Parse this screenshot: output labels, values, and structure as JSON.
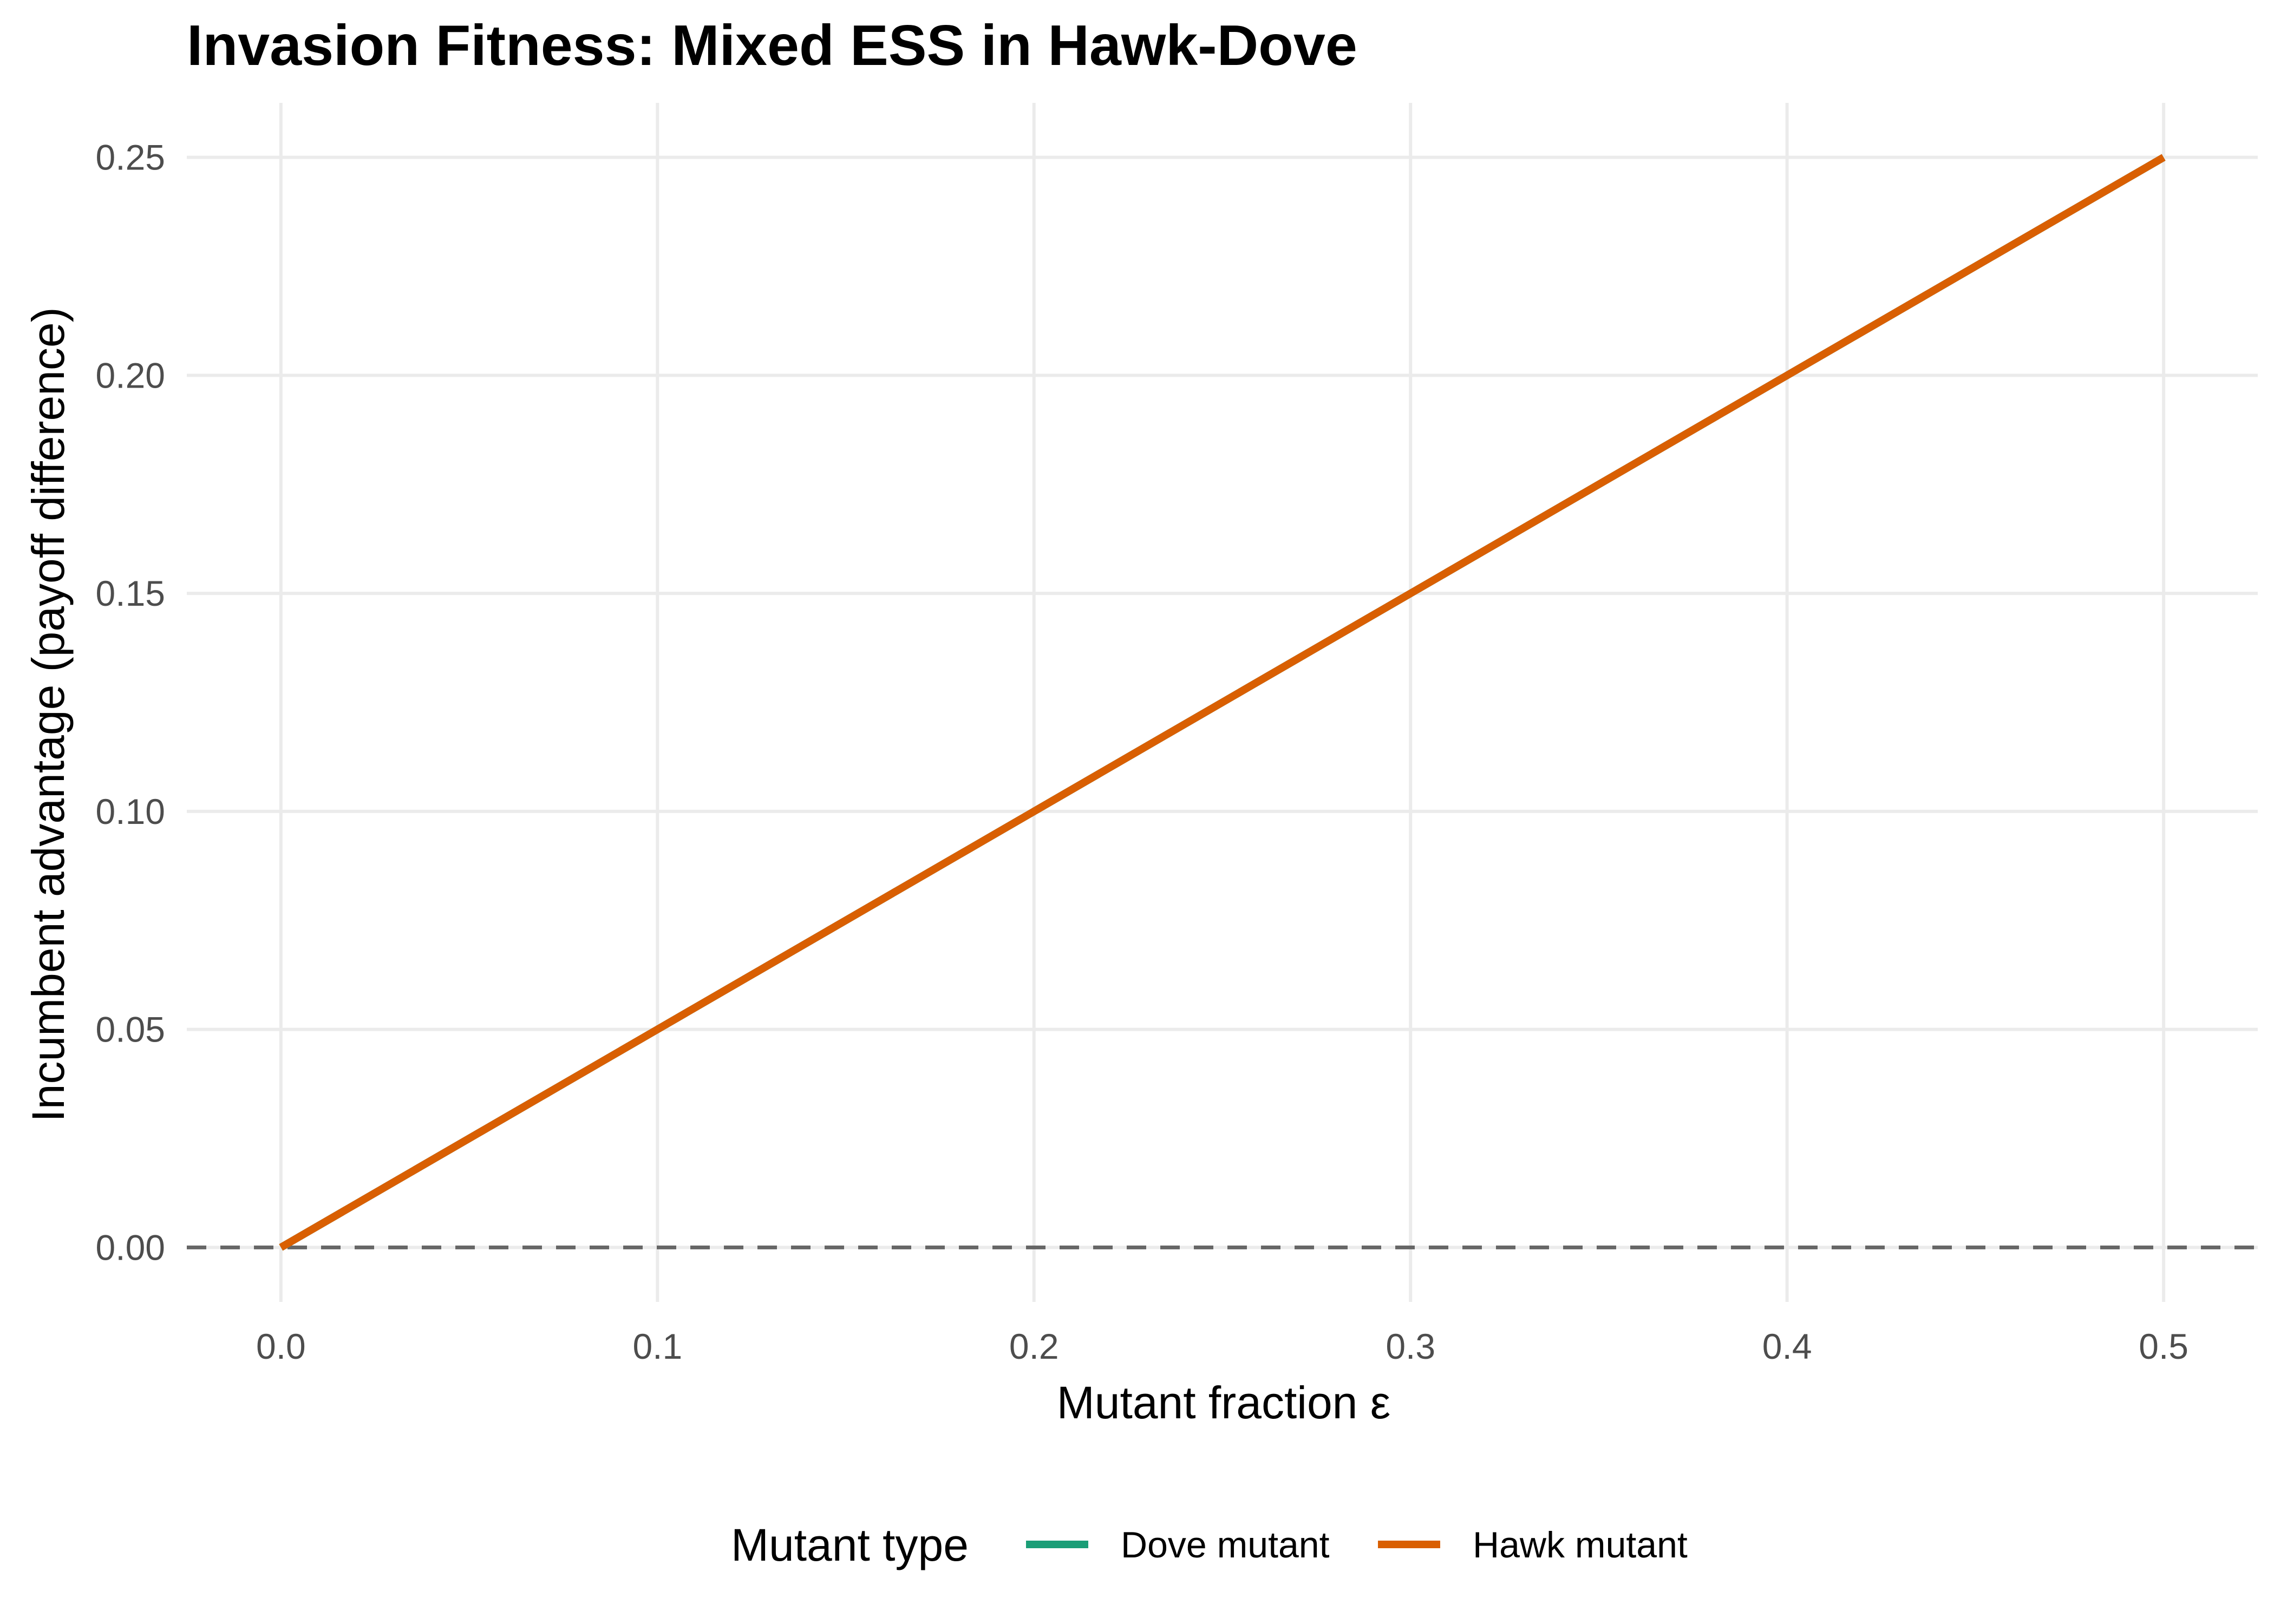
{
  "chart_data": {
    "type": "line",
    "title": "Invasion Fitness: Mixed ESS in Hawk-Dove",
    "xlabel": "Mutant fraction ε",
    "ylabel": "Incumbent advantage (payoff difference)",
    "xlim": [
      -0.025,
      0.525
    ],
    "ylim": [
      -0.0125,
      0.2625
    ],
    "x_ticks": [
      0.0,
      0.1,
      0.2,
      0.3,
      0.4,
      0.5
    ],
    "x_tick_labels": [
      "0.0",
      "0.1",
      "0.2",
      "0.3",
      "0.4",
      "0.5"
    ],
    "y_ticks": [
      0.0,
      0.05,
      0.1,
      0.15,
      0.2,
      0.25
    ],
    "y_tick_labels": [
      "0.00",
      "0.05",
      "0.10",
      "0.15",
      "0.20",
      "0.25"
    ],
    "grid": true,
    "reference_line": {
      "y": 0,
      "style": "dashed",
      "color": "#666666"
    },
    "legend": {
      "position": "bottom",
      "title": "Mutant type",
      "entries": [
        "Dove mutant",
        "Hawk mutant"
      ]
    },
    "series": [
      {
        "name": "Dove mutant",
        "color": "#1b9e77",
        "x": [
          0.0,
          0.5
        ],
        "y": [
          0.0,
          0.25
        ]
      },
      {
        "name": "Hawk mutant",
        "color": "#d95f02",
        "x": [
          0.0,
          0.5
        ],
        "y": [
          0.0,
          0.25
        ]
      }
    ]
  }
}
